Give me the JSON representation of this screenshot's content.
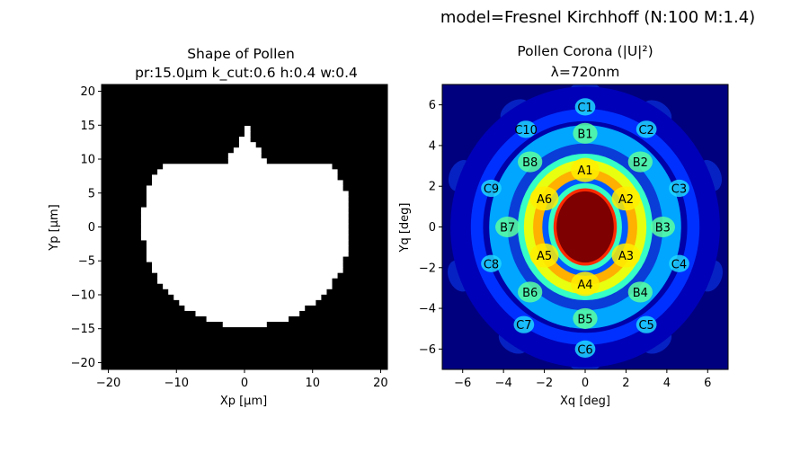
{
  "figure": {
    "suptitle": "model=Fresnel Kirchhoff (N:100 M:1.4)"
  },
  "chart_data": [
    {
      "type": "heatmap",
      "title_line1": "Shape of Pollen",
      "title_line2": "pr:15.0µm   k_cut:0.6   h:0.4   w:0.4",
      "xlabel": "Xp [µm]",
      "ylabel": "Yp [µm]",
      "xlim": [
        -21,
        21
      ],
      "ylim": [
        -21,
        21
      ],
      "xticks": [
        -20,
        -10,
        0,
        10,
        20
      ],
      "yticks": [
        -20,
        -15,
        -10,
        -5,
        0,
        5,
        10,
        15,
        20
      ],
      "xtick_labels": [
        "−20",
        "−10",
        "0",
        "10",
        "20"
      ],
      "ytick_labels": [
        "−20",
        "−15",
        "−10",
        "−5",
        "0",
        "5",
        "10",
        "15",
        "20"
      ],
      "colors": {
        "background": "#000000",
        "pollen": "#ffffff"
      },
      "shape": {
        "radius": 15,
        "cut_top_y": 9,
        "cut_bottom_y": -14.7,
        "spike_tip_y": 14.5,
        "spike_half_width": 3
      }
    },
    {
      "type": "heatmap",
      "title_line1": "Pollen Corona (|U|²)",
      "title_line2": "λ=720nm",
      "xlabel": "Xq [deg]",
      "ylabel": "Yq [deg]",
      "xlim": [
        -7,
        7
      ],
      "ylim": [
        -7,
        7
      ],
      "xticks": [
        -6,
        -4,
        -2,
        0,
        2,
        4,
        6
      ],
      "yticks": [
        -6,
        -4,
        -2,
        0,
        2,
        4,
        6
      ],
      "xtick_labels": [
        "−6",
        "−4",
        "−2",
        "0",
        "2",
        "4",
        "6"
      ],
      "ytick_labels": [
        "−6",
        "−4",
        "−2",
        "0",
        "2",
        "4",
        "6"
      ],
      "colormap": "jet",
      "spots": [
        {
          "label": "A1",
          "x": 0.0,
          "y": 2.8
        },
        {
          "label": "A2",
          "x": 2.0,
          "y": 1.4
        },
        {
          "label": "A3",
          "x": 2.0,
          "y": -1.4
        },
        {
          "label": "A4",
          "x": 0.0,
          "y": -2.8
        },
        {
          "label": "A5",
          "x": -2.0,
          "y": -1.4
        },
        {
          "label": "A6",
          "x": -2.0,
          "y": 1.4
        },
        {
          "label": "B1",
          "x": 0.0,
          "y": 4.6
        },
        {
          "label": "B2",
          "x": 2.7,
          "y": 3.2
        },
        {
          "label": "B3",
          "x": 3.8,
          "y": 0.0
        },
        {
          "label": "B4",
          "x": 2.7,
          "y": -3.2
        },
        {
          "label": "B5",
          "x": 0.0,
          "y": -4.5
        },
        {
          "label": "B6",
          "x": -2.7,
          "y": -3.2
        },
        {
          "label": "B7",
          "x": -3.8,
          "y": 0.0
        },
        {
          "label": "B8",
          "x": -2.7,
          "y": 3.2
        },
        {
          "label": "C1",
          "x": 0.0,
          "y": 5.9
        },
        {
          "label": "C2",
          "x": 3.0,
          "y": 4.8
        },
        {
          "label": "C3",
          "x": 4.6,
          "y": 1.9
        },
        {
          "label": "C4",
          "x": 4.6,
          "y": -1.8
        },
        {
          "label": "C5",
          "x": 3.0,
          "y": -4.8
        },
        {
          "label": "C6",
          "x": 0.0,
          "y": -6.0
        },
        {
          "label": "C7",
          "x": -3.0,
          "y": -4.8
        },
        {
          "label": "C8",
          "x": -4.6,
          "y": -1.8
        },
        {
          "label": "C9",
          "x": -4.6,
          "y": 1.9
        },
        {
          "label": "C10",
          "x": -2.9,
          "y": 4.8
        }
      ]
    }
  ]
}
